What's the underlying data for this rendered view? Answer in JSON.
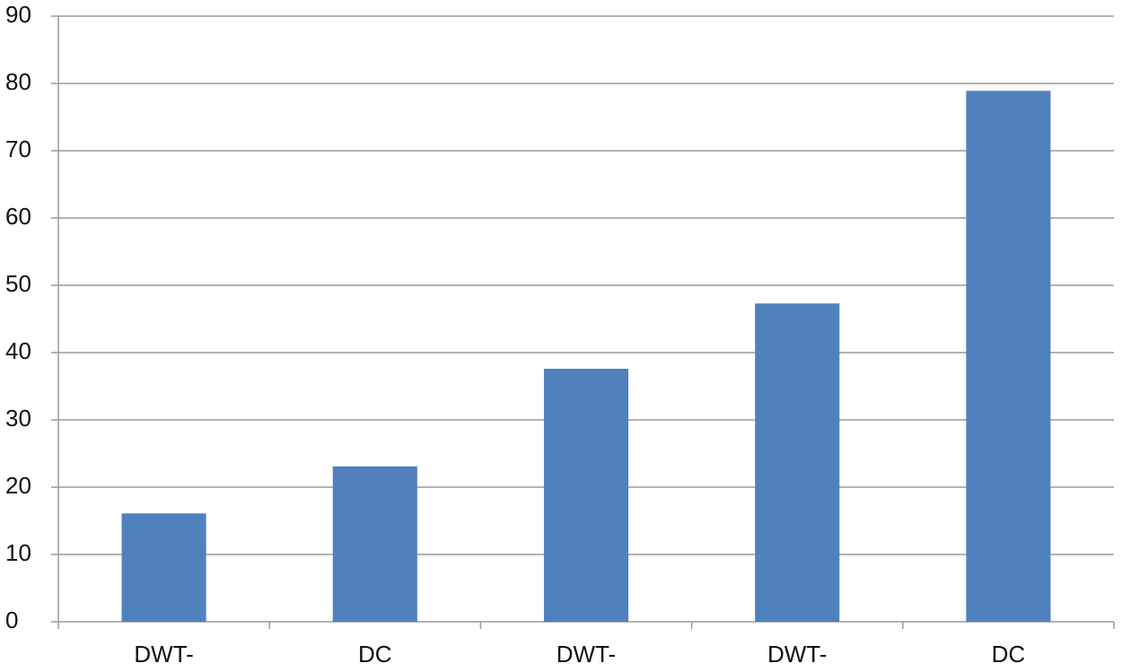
{
  "chart_data": {
    "type": "bar",
    "categories": [
      "DWT-",
      "DC",
      "DWT-",
      "DWT-",
      "DC"
    ],
    "values": [
      16.1,
      23.1,
      37.6,
      47.3,
      78.9
    ],
    "color": "#4f81bd",
    "ylim": [
      0,
      90
    ],
    "yticks": [
      0,
      10,
      20,
      30,
      40,
      50,
      60,
      70,
      80,
      90
    ],
    "grid": true
  }
}
